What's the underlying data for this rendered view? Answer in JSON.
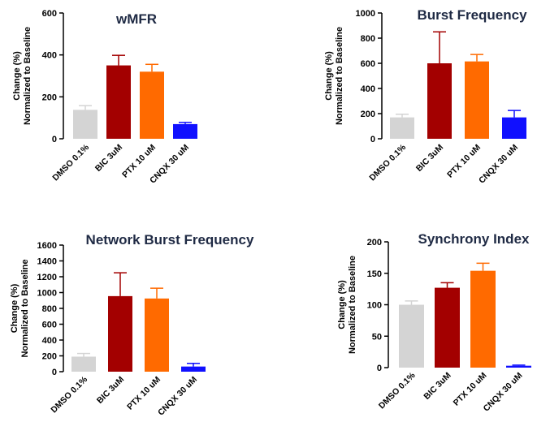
{
  "chart_data": [
    {
      "type": "bar",
      "title": "wMFR",
      "ylabel": [
        "Change (%)",
        "Normalized to Baseline"
      ],
      "ylim": [
        0,
        600
      ],
      "yticks": [
        0,
        200,
        400,
        600
      ],
      "categories": [
        "DMSO 0.1%",
        "BIC 3uM",
        "PTX 10 uM",
        "CNQX 30 uM"
      ],
      "values": [
        138,
        350,
        320,
        70
      ],
      "error": [
        20,
        48,
        35,
        8
      ],
      "colors": [
        "#d4d4d4",
        "#a30000",
        "#ff6a00",
        "#1010ff"
      ]
    },
    {
      "type": "bar",
      "title": "Burst Frequency",
      "ylabel": [
        "Change (%)",
        "Normalized to Baseline"
      ],
      "ylim": [
        0,
        1000
      ],
      "yticks": [
        0,
        200,
        400,
        600,
        800,
        1000
      ],
      "categories": [
        "DMSO 0.1%",
        "BIC 3uM",
        "PTX 10 uM",
        "CNQX 30 uM"
      ],
      "values": [
        170,
        600,
        615,
        170
      ],
      "error": [
        25,
        250,
        55,
        55
      ],
      "colors": [
        "#d4d4d4",
        "#a30000",
        "#ff6a00",
        "#1010ff"
      ]
    },
    {
      "type": "bar",
      "title": "Network Burst Frequency",
      "ylabel": [
        "Change (%)",
        "Normalized to Baseline"
      ],
      "ylim": [
        0,
        1600
      ],
      "yticks": [
        0,
        200,
        400,
        600,
        800,
        1000,
        1200,
        1400,
        1600
      ],
      "categories": [
        "DMSO 0.1%",
        "BIC 3uM",
        "PTX 10 uM",
        "CNQX 30 uM"
      ],
      "values": [
        190,
        955,
        925,
        65
      ],
      "error": [
        40,
        295,
        130,
        40
      ],
      "colors": [
        "#d4d4d4",
        "#a30000",
        "#ff6a00",
        "#1010ff"
      ]
    },
    {
      "type": "bar",
      "title": "Synchrony Index",
      "ylabel": [
        "Change (%)",
        "Normalized to Baseline"
      ],
      "ylim": [
        0,
        200
      ],
      "yticks": [
        0,
        50,
        100,
        150,
        200
      ],
      "categories": [
        "DMSO 0.1%",
        "BIC 3uM",
        "PTX 10 uM",
        "CNQX 30 uM"
      ],
      "values": [
        100,
        127,
        154,
        3
      ],
      "error": [
        6,
        8,
        12,
        1
      ],
      "colors": [
        "#d4d4d4",
        "#a30000",
        "#ff6a00",
        "#1010ff"
      ]
    }
  ]
}
